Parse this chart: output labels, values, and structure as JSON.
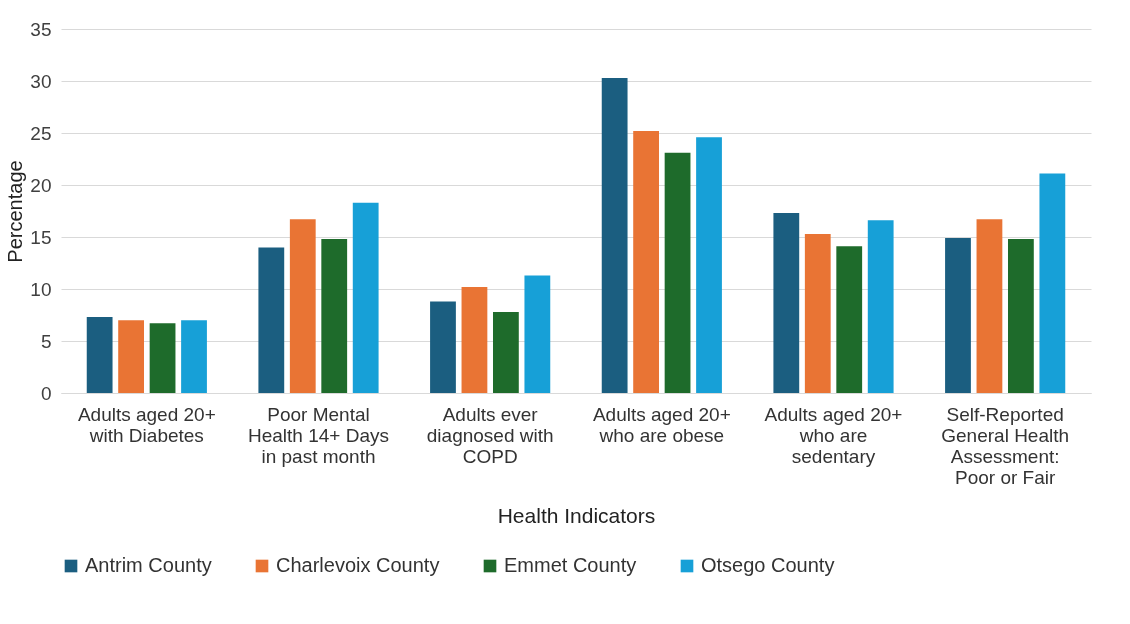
{
  "chart_data": {
    "type": "bar",
    "xlabel": "Health Indicators",
    "ylabel": "Percentage",
    "categories": [
      "Adults aged 20+ with Diabetes",
      "Poor Mental Health 14+ Days in past month",
      "Adults ever diagnosed with COPD",
      "Adults aged 20+ who are obese",
      "Adults aged 20+ who are sedentary",
      "Self-Reported General Health Assessment: Poor or Fair"
    ],
    "series": [
      {
        "name": "Antrim County",
        "color": "#1b5e80",
        "values": [
          7.3,
          14.0,
          8.8,
          30.3,
          17.3,
          14.9
        ]
      },
      {
        "name": "Charlevoix County",
        "color": "#e97434",
        "values": [
          7.0,
          16.7,
          10.2,
          25.2,
          15.3,
          16.7
        ]
      },
      {
        "name": "Emmet County",
        "color": "#1e6b2b",
        "values": [
          6.7,
          14.8,
          7.8,
          23.1,
          14.1,
          14.8
        ]
      },
      {
        "name": "Otsego County",
        "color": "#17a0d7",
        "values": [
          7.0,
          18.3,
          11.3,
          24.6,
          16.6,
          21.1
        ]
      }
    ],
    "ylim": [
      0,
      35
    ],
    "yticks": [
      0,
      5,
      10,
      15,
      20,
      25,
      30,
      35
    ],
    "grid": "y",
    "legend": "bottom"
  }
}
